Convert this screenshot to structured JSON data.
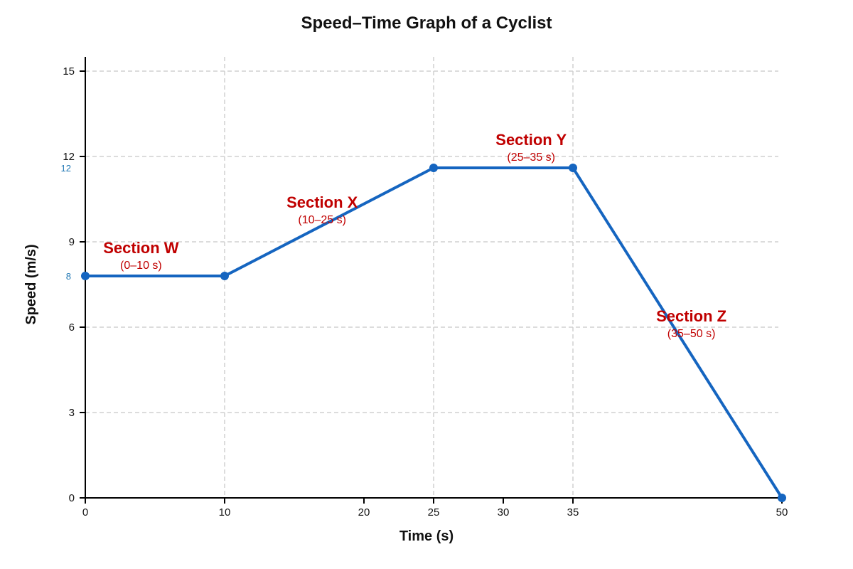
{
  "chart_data": {
    "type": "line",
    "title": "Speed–Time Graph of a Cyclist",
    "xlabel": "Time (s)",
    "ylabel": "Speed (m/s)",
    "xlim": [
      0,
      50
    ],
    "ylim": [
      0,
      15
    ],
    "x_ticks": [
      0,
      10,
      20,
      25,
      30,
      35,
      50
    ],
    "y_ticks": [
      0,
      3,
      6,
      9,
      12,
      15
    ],
    "x_grid": [
      10,
      25,
      35
    ],
    "y_grid": [
      3,
      6,
      9,
      12,
      15
    ],
    "grid": true,
    "series": [
      {
        "points": [
          {
            "x": 0,
            "y": 7.8
          },
          {
            "x": 10,
            "y": 7.8
          },
          {
            "x": 25,
            "y": 11.6
          },
          {
            "x": 35,
            "y": 11.6
          },
          {
            "x": 50,
            "y": 0
          }
        ]
      }
    ],
    "value_labels": [
      {
        "text": "12",
        "y": 11.6
      },
      {
        "text": "8",
        "y": 7.8
      }
    ],
    "annotations": [
      {
        "name": "Section W",
        "range": "(0–10 s)",
        "x": 2,
        "y": 8.6
      },
      {
        "name": "Section X",
        "range": "(10–25 s)",
        "x": 8.5,
        "y": 10.2
      },
      {
        "name": "Section Y",
        "range": "(25–35 s)",
        "x": 16,
        "y": 12.4
      },
      {
        "name": "Section Z",
        "range": "(35–50 s)",
        "x": 21.75,
        "y": 6.2
      }
    ]
  },
  "colors": {
    "line": "#1565c0",
    "marker": "#1565c0",
    "value_label": "#1f77b4",
    "annotation": "#c00000"
  }
}
